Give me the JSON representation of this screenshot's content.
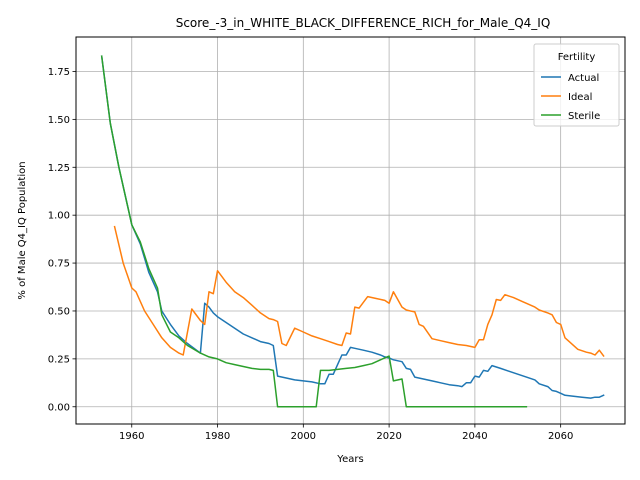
{
  "chart_data": {
    "type": "line",
    "title": "Score_-3_in_WHITE_BLACK_DIFFERENCE_RICH_for_Male_Q4_IQ",
    "xlabel": "Years",
    "ylabel": "% of Male Q4_IQ Population",
    "xlim": [
      1947,
      2075
    ],
    "ylim": [
      -0.09,
      1.93
    ],
    "xticks": [
      1960,
      1980,
      2000,
      2020,
      2040,
      2060
    ],
    "yticks": [
      0.0,
      0.25,
      0.5,
      0.75,
      1.0,
      1.25,
      1.5,
      1.75
    ],
    "ytick_labels": [
      "0.00",
      "0.25",
      "0.50",
      "0.75",
      "1.00",
      "1.25",
      "1.50",
      "1.75"
    ],
    "grid": true,
    "legend": {
      "title": "Fertility",
      "placement": "top-right"
    },
    "series": [
      {
        "name": "Actual",
        "color": "#1f77b4",
        "x": [
          1953,
          1955,
          1957,
          1959,
          1960,
          1962,
          1964,
          1966,
          1967,
          1969,
          1971,
          1973,
          1976,
          1977,
          1978,
          1979,
          1980,
          1982,
          1984,
          1986,
          1988,
          1990,
          1992,
          1993,
          1994,
          1996,
          1998,
          2000,
          2002,
          2004,
          2005,
          2006,
          2007,
          2008,
          2009,
          2010,
          2011,
          2012,
          2014,
          2016,
          2018,
          2019,
          2020,
          2021,
          2023,
          2024,
          2025,
          2026,
          2028,
          2030,
          2032,
          2034,
          2036,
          2037,
          2038,
          2039,
          2040,
          2041,
          2042,
          2043,
          2044,
          2046,
          2048,
          2050,
          2052,
          2054,
          2055,
          2057,
          2058,
          2059,
          2060,
          2061,
          2063,
          2065,
          2067,
          2068,
          2069,
          2070
        ],
        "y": [
          1.83,
          1.48,
          1.25,
          1.05,
          0.95,
          0.85,
          0.7,
          0.6,
          0.5,
          0.43,
          0.37,
          0.33,
          0.28,
          0.54,
          0.52,
          0.49,
          0.47,
          0.44,
          0.41,
          0.38,
          0.36,
          0.34,
          0.33,
          0.32,
          0.16,
          0.15,
          0.14,
          0.135,
          0.13,
          0.12,
          0.12,
          0.17,
          0.17,
          0.22,
          0.27,
          0.27,
          0.31,
          0.305,
          0.295,
          0.285,
          0.27,
          0.26,
          0.255,
          0.245,
          0.235,
          0.2,
          0.195,
          0.155,
          0.145,
          0.135,
          0.125,
          0.115,
          0.11,
          0.105,
          0.125,
          0.125,
          0.16,
          0.155,
          0.19,
          0.185,
          0.215,
          0.2,
          0.185,
          0.17,
          0.155,
          0.14,
          0.12,
          0.105,
          0.085,
          0.08,
          0.07,
          0.06,
          0.055,
          0.05,
          0.045,
          0.05,
          0.05,
          0.06
        ]
      },
      {
        "name": "Ideal",
        "color": "#ff7f0e",
        "x": [
          1956,
          1958,
          1960,
          1961,
          1963,
          1965,
          1967,
          1969,
          1971,
          1972,
          1974,
          1976,
          1977,
          1978,
          1979,
          1980,
          1982,
          1984,
          1986,
          1988,
          1990,
          1992,
          1993,
          1994,
          1995,
          1996,
          1998,
          2000,
          2002,
          2004,
          2006,
          2008,
          2009,
          2010,
          2011,
          2012,
          2013,
          2015,
          2017,
          2019,
          2020,
          2021,
          2023,
          2024,
          2025,
          2026,
          2027,
          2028,
          2030,
          2032,
          2034,
          2036,
          2038,
          2040,
          2041,
          2042,
          2043,
          2044,
          2045,
          2046,
          2047,
          2049,
          2051,
          2052,
          2054,
          2055,
          2057,
          2058,
          2059,
          2060,
          2061,
          2062,
          2064,
          2066,
          2067,
          2068,
          2069,
          2070
        ],
        "y": [
          0.94,
          0.75,
          0.62,
          0.6,
          0.5,
          0.43,
          0.36,
          0.31,
          0.28,
          0.27,
          0.51,
          0.45,
          0.43,
          0.6,
          0.59,
          0.71,
          0.65,
          0.6,
          0.57,
          0.53,
          0.49,
          0.46,
          0.455,
          0.445,
          0.33,
          0.32,
          0.41,
          0.39,
          0.37,
          0.355,
          0.34,
          0.325,
          0.32,
          0.385,
          0.38,
          0.52,
          0.515,
          0.575,
          0.565,
          0.555,
          0.54,
          0.6,
          0.52,
          0.505,
          0.5,
          0.495,
          0.43,
          0.42,
          0.355,
          0.345,
          0.335,
          0.325,
          0.32,
          0.31,
          0.35,
          0.35,
          0.43,
          0.48,
          0.56,
          0.555,
          0.585,
          0.57,
          0.55,
          0.54,
          0.52,
          0.505,
          0.49,
          0.48,
          0.44,
          0.43,
          0.36,
          0.34,
          0.3,
          0.285,
          0.28,
          0.27,
          0.295,
          0.265
        ]
      },
      {
        "name": "Sterile",
        "color": "#2ca02c",
        "x": [
          1953,
          1955,
          1957,
          1959,
          1960,
          1962,
          1964,
          1966,
          1967,
          1969,
          1971,
          1973,
          1976,
          1978,
          1980,
          1982,
          1984,
          1986,
          1988,
          1990,
          1992,
          1993,
          1994,
          1996,
          1998,
          2000,
          2002,
          2003,
          2004,
          2006,
          2008,
          2010,
          2012,
          2014,
          2016,
          2018,
          2020,
          2021,
          2023,
          2024,
          2026,
          2030,
          2035,
          2040,
          2045,
          2050,
          2052
        ],
        "y": [
          1.83,
          1.48,
          1.25,
          1.05,
          0.95,
          0.86,
          0.72,
          0.62,
          0.48,
          0.39,
          0.36,
          0.32,
          0.28,
          0.26,
          0.25,
          0.23,
          0.22,
          0.21,
          0.2,
          0.195,
          0.195,
          0.19,
          0.0,
          0.0,
          0.0,
          0.0,
          0.0,
          0.0,
          0.19,
          0.19,
          0.195,
          0.2,
          0.205,
          0.215,
          0.225,
          0.245,
          0.265,
          0.135,
          0.145,
          0.0,
          0.0,
          0.0,
          0.0,
          0.0,
          0.0,
          0.0,
          0.0
        ]
      }
    ]
  }
}
